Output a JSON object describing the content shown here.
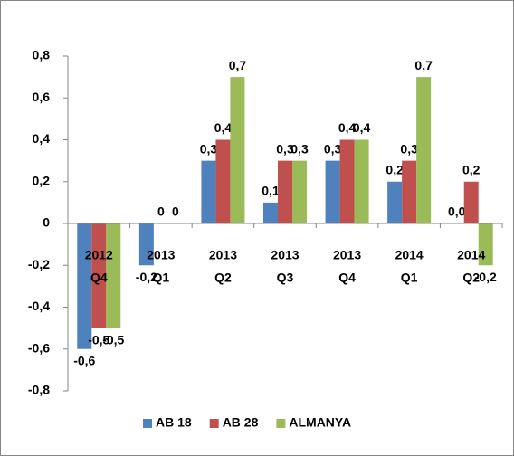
{
  "chart_data": {
    "type": "bar",
    "categories": [
      [
        "2012",
        "Q4"
      ],
      [
        "2013",
        "Q1"
      ],
      [
        "2013",
        "Q2"
      ],
      [
        "2013",
        "Q3"
      ],
      [
        "2013",
        "Q4"
      ],
      [
        "2014",
        "Q1"
      ],
      [
        "2014",
        "Q2"
      ]
    ],
    "series": [
      {
        "name": "AB 18",
        "color": "#4f81bd",
        "values": [
          -0.6,
          -0.2,
          0.3,
          0.1,
          0.3,
          0.2,
          0.0
        ],
        "value_labels": [
          "-0,6",
          "-0,2",
          "0,3",
          "0,1",
          "0,3",
          "0,2",
          "0,0"
        ]
      },
      {
        "name": "AB 28",
        "color": "#c0504d",
        "values": [
          -0.5,
          0,
          0.4,
          0.3,
          0.4,
          0.3,
          0.2
        ],
        "value_labels": [
          "-0,5",
          "0",
          "0,4",
          "0,3",
          "0,4",
          "0,3",
          "0,2"
        ]
      },
      {
        "name": "ALMANYA",
        "color": "#9bbb59",
        "values": [
          -0.5,
          0,
          0.7,
          0.3,
          0.4,
          0.7,
          -0.2
        ],
        "value_labels": [
          "-0,5",
          "0",
          "0,7",
          "0,3",
          "0,4",
          "0,7",
          "-0,2"
        ]
      }
    ],
    "ylim": [
      -0.8,
      0.8
    ],
    "yticks": [
      {
        "value": -0.8,
        "label": "-0,8"
      },
      {
        "value": -0.6,
        "label": "-0,6"
      },
      {
        "value": -0.4,
        "label": "-0,4"
      },
      {
        "value": -0.2,
        "label": "-0,2"
      },
      0,
      {
        "value": 0.2,
        "label": "0,2"
      },
      {
        "value": 0.4,
        "label": "0,4"
      },
      {
        "value": 0.6,
        "label": "0,6"
      },
      {
        "value": 0.8,
        "label": "0,8"
      }
    ],
    "legend": "bottom"
  }
}
